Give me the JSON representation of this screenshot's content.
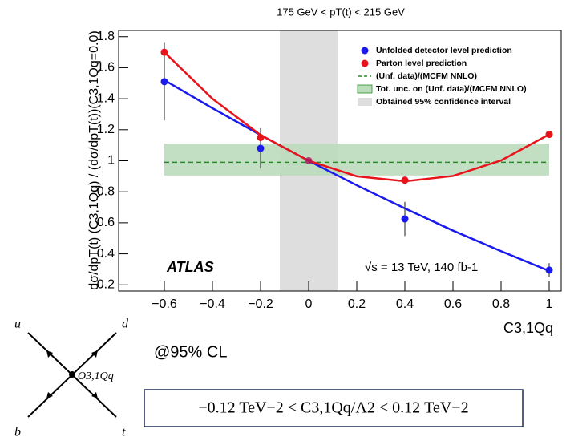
{
  "chart_data": {
    "type": "scatter",
    "title": "175 GeV < pT(t) < 215 GeV",
    "y_label": "dσ/dpT(t) (C3,1Qq) / (dσ/dpT(t))(C3,1Qq=0.0)",
    "x_label": "C3,1Qq",
    "annotations": [
      "ATLAS",
      "√s = 13 TeV, 140 fb-1"
    ],
    "x": [
      -0.6,
      -0.2,
      0,
      0.4,
      1
    ],
    "series": [
      {
        "name": "Unfolded detector level prediction",
        "color": "#1a1aee",
        "values": [
          1.51,
          1.08,
          1.0,
          0.625,
          0.295
        ],
        "errors": [
          0.25,
          0.13,
          0,
          0.11,
          0.045
        ],
        "curve_x": [
          -0.6,
          -0.4,
          -0.2,
          0,
          0.2,
          0.4,
          0.6,
          0.8,
          1
        ],
        "curve_y": [
          1.52,
          1.339,
          1.166,
          1.0,
          0.842,
          0.693,
          0.55,
          0.417,
          0.29
        ]
      },
      {
        "name": "Parton level prediction",
        "color": "#e8141c",
        "values": [
          1.7,
          1.15,
          1.0,
          0.875,
          1.17
        ],
        "curve_x": [
          -0.6,
          -0.4,
          -0.2,
          0,
          0.2,
          0.4,
          0.6,
          0.8,
          1
        ],
        "curve_y": [
          1.7,
          1.4,
          1.166,
          1.0,
          0.9,
          0.868,
          0.902,
          1.002,
          1.17
        ]
      }
    ],
    "reference_line": {
      "name": "(Unf. data)/(MCFM NNLO)",
      "value": 0.99,
      "color": "#2a8a2a"
    },
    "band": {
      "name": "Tot. unc. on (Unf. data)/(MCFM NNLO)",
      "range": [
        0.905,
        1.11
      ],
      "color": "#bcdcbc"
    },
    "interval": {
      "name": "Obtained 95% confidence interval",
      "range": [
        -0.12,
        0.12
      ],
      "color": "#dedede"
    },
    "xlim": [
      -0.79,
      1.05
    ],
    "ylim": [
      0.16,
      1.84
    ],
    "xticks": [
      {
        "value": -0.6,
        "label": "−0.6"
      },
      {
        "value": -0.4,
        "label": "−0.4"
      },
      {
        "value": -0.2,
        "label": "−0.2"
      },
      0,
      0.2,
      0.4,
      0.6,
      0.8,
      1
    ],
    "yticks": [
      0.2,
      0.4,
      0.6,
      0.8,
      1,
      1.2,
      1.4,
      1.6,
      1.8
    ],
    "legend": "upper right"
  },
  "diagram": {
    "labels": [
      "u",
      "d",
      "b",
      "t"
    ],
    "vertex": "O3,1Qq"
  },
  "note": "@95% CL",
  "constraint": "−0.12 TeV−2 < C3,1Qq/Λ2 < 0.12 TeV−2"
}
